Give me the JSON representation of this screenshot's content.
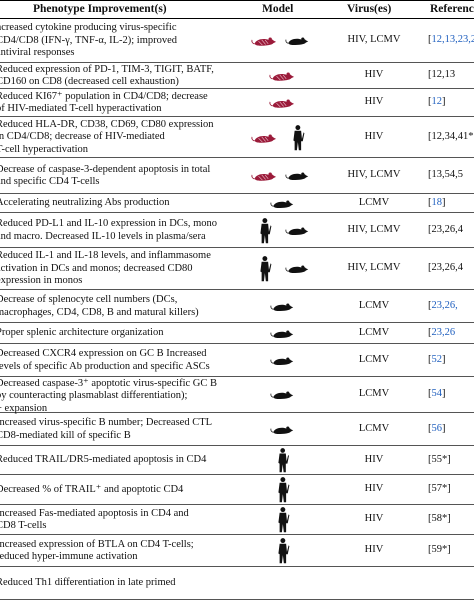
{
  "header": {
    "phenotype": "Phenotype Improvement(s)",
    "model": "Model",
    "virus": "Virus(es)",
    "refs": "Referenc"
  },
  "legend_icons": [
    "humanized-mouse-icon",
    "mouse-icon",
    "human-icon"
  ],
  "colors": {
    "humanized_mouse": "#9b1b3a",
    "mouse": "#111111",
    "human": "#111111",
    "link": "#1f5fbf"
  },
  "rows": [
    {
      "lines": [
        "ncreased cytokine producing virus-specific",
        "CD4/CD8 (IFN-γ, TNF-α, IL-2); improved",
        "antiviral responses"
      ],
      "models": [
        "humanized-mouse",
        "mouse"
      ],
      "virus": "HIV, LCMV",
      "refs": [
        "[",
        "12,13,23,2"
      ]
    },
    {
      "lines": [
        "Reduced expression of PD-1, TIM-3, TIGIT, BATF,",
        "CD160 on CD8 (decreased cell exhaustion)"
      ],
      "models": [
        "humanized-mouse"
      ],
      "virus": "HIV",
      "refs": [
        "",
        "[12,13"
      ]
    },
    {
      "lines": [
        "Reduced KI67⁺ population in CD4/CD8; decrease",
        "of HIV-mediated T-cell hyperactivation"
      ],
      "models": [
        "humanized-mouse"
      ],
      "virus": "HIV",
      "refs": [
        "[",
        "12",
        "]"
      ]
    },
    {
      "lines": [
        "Reduced HLA-DR, CD38, CD69, CD80 expression",
        "in CD4/CD8; decrease of HIV-mediated",
        "T-cell hyperactivation"
      ],
      "models": [
        "humanized-mouse",
        "human"
      ],
      "virus": "HIV",
      "refs": [
        "[12,34,41*"
      ]
    },
    {
      "lines": [
        "Decrease of caspase-3-dependent apoptosis in total",
        "and specific CD4 T-cells"
      ],
      "models": [
        "humanized-mouse",
        "mouse"
      ],
      "virus": "HIV, LCMV",
      "refs": [
        "[13,54,5"
      ]
    },
    {
      "lines": [
        "Accelerating neutralizing Abs production"
      ],
      "models": [
        "mouse"
      ],
      "virus": "LCMV",
      "refs": [
        "[",
        "18",
        "]"
      ]
    },
    {
      "lines": [
        "Reduced PD-L1 and IL-10 expression in DCs, mono",
        "and macro. Decreased IL-10 levels in plasma/sera"
      ],
      "models": [
        "human",
        "mouse"
      ],
      "virus": "HIV, LCMV",
      "refs": [
        "[23,26,4"
      ]
    },
    {
      "lines": [
        "Reduced IL-1 and IL-18 levels, and inflammasome",
        "activation in DCs and monos; decreased CD80",
        "expression in monos"
      ],
      "models": [
        "human",
        "mouse"
      ],
      "virus": "HIV, LCMV",
      "refs": [
        "[23,26,4"
      ]
    },
    {
      "lines": [
        "Decrease of splenocyte cell numbers (DCs,",
        "macrophages, CD4, CD8, B and matural killers)"
      ],
      "models": [
        "mouse"
      ],
      "virus": "LCMV",
      "refs": [
        "[",
        "23,26,"
      ]
    },
    {
      "lines": [
        "Proper splenic architecture organization"
      ],
      "models": [
        "mouse"
      ],
      "virus": "LCMV",
      "refs": [
        "[",
        "23,26"
      ]
    },
    {
      "lines": [
        "Decreased CXCR4 expression on GC B Increased",
        "levels of specific Ab production and specific ASCs"
      ],
      "models": [
        "mouse"
      ],
      "virus": "LCMV",
      "refs": [
        "[",
        "52",
        "]"
      ]
    },
    {
      "lines": [
        "Decreased caspase-3⁺ apoptotic virus-specific GC B",
        "by counteracting plasmablast differentiation);",
        "+ expansion"
      ],
      "models": [
        "mouse"
      ],
      "virus": "LCMV",
      "refs": [
        "[",
        "54",
        "]"
      ]
    },
    {
      "lines": [
        "Increased virus-specific B number; Decreased CTL",
        "CD8-mediated kill of specific B"
      ],
      "models": [
        "mouse"
      ],
      "virus": "LCMV",
      "refs": [
        "[",
        "56",
        "]"
      ]
    },
    {
      "lines": [
        "Reduced TRAIL/DR5-mediated apoptosis in CD4"
      ],
      "models": [
        "human"
      ],
      "virus": "HIV",
      "refs": [
        "[55*]"
      ]
    },
    {
      "lines": [
        "Decreased % of TRAIL⁺ and apoptotic CD4"
      ],
      "models": [
        "human"
      ],
      "virus": "HIV",
      "refs": [
        "[57*]"
      ]
    },
    {
      "lines": [
        "Increased Fas-mediated apoptosis in CD4 and",
        "CD8 T-cells"
      ],
      "models": [
        "human"
      ],
      "virus": "HIV",
      "refs": [
        "[58*]"
      ]
    },
    {
      "lines": [
        "Increased expression of BTLA on CD4 T-cells;",
        "reduced hyper-immune activation"
      ],
      "models": [
        "human"
      ],
      "virus": "HIV",
      "refs": [
        "[59*]"
      ]
    },
    {
      "lines": [
        "Reduced Th1 differentiation in late primed"
      ],
      "models": [],
      "virus": "",
      "refs": [
        ""
      ]
    }
  ]
}
